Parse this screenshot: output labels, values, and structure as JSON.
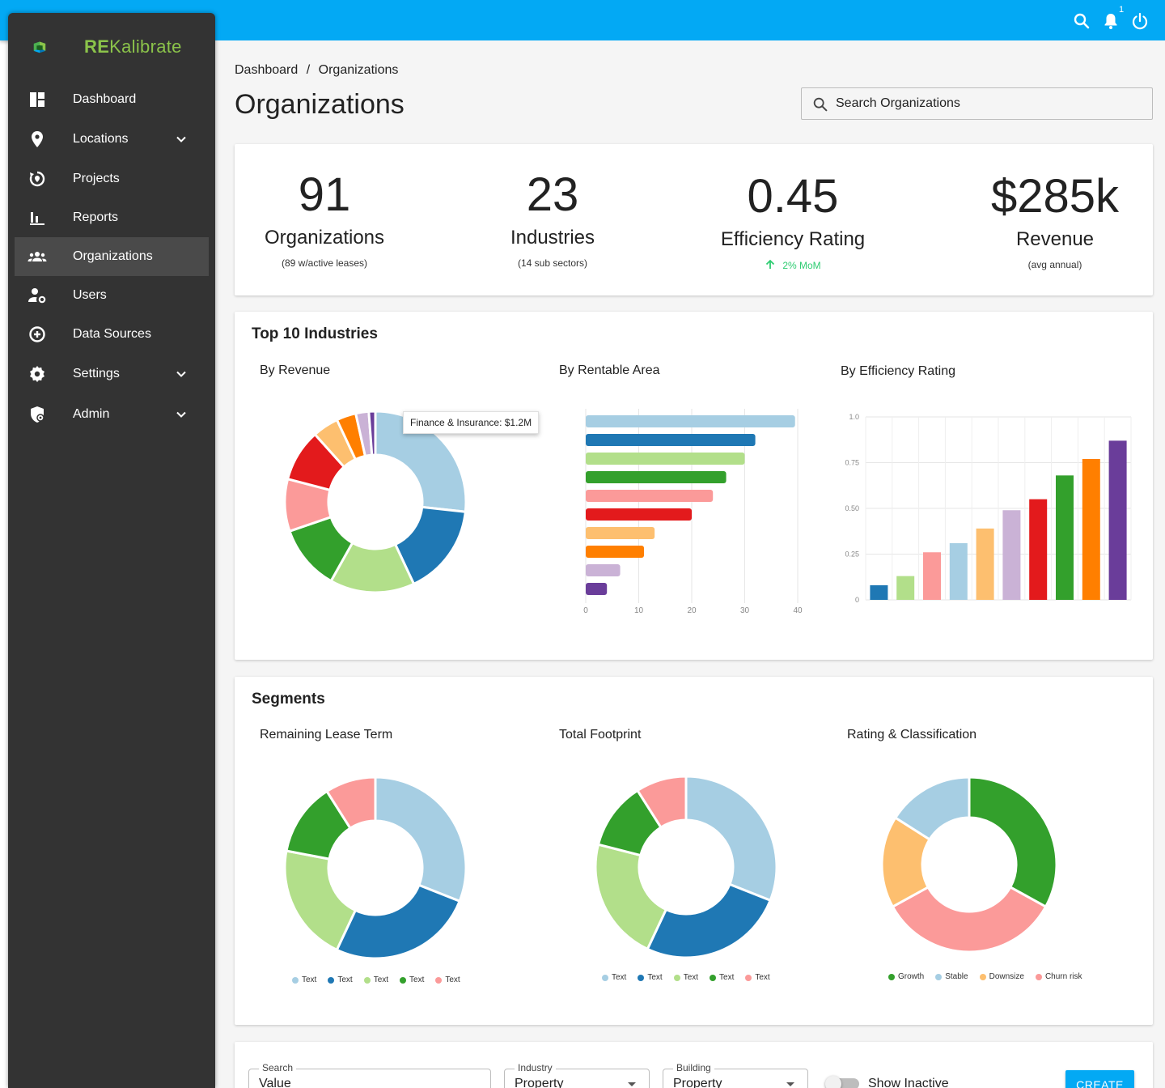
{
  "app": {
    "brand_prefix": "RE",
    "brand_suffix": "Kalibrate",
    "notification_count": "1"
  },
  "colors": {
    "primary": "#03a9f4",
    "sidebar": "#333333",
    "accent_green": "#8bc34a",
    "mom_up": "#2ecc71"
  },
  "topbar": {
    "icons": [
      "search-icon",
      "bell-icon",
      "power-icon"
    ]
  },
  "sidebar": {
    "items": [
      {
        "label": "Dashboard",
        "icon": "dashboard-icon",
        "expandable": false,
        "active": false
      },
      {
        "label": "Locations",
        "icon": "location-pin-icon",
        "expandable": true,
        "active": false
      },
      {
        "label": "Projects",
        "icon": "projects-icon",
        "expandable": false,
        "active": false
      },
      {
        "label": "Reports",
        "icon": "bar-chart-icon",
        "expandable": false,
        "active": false
      },
      {
        "label": "Organizations",
        "icon": "groups-icon",
        "expandable": false,
        "active": true
      },
      {
        "label": "Users",
        "icon": "user-settings-icon",
        "expandable": false,
        "active": false
      },
      {
        "label": "Data Sources",
        "icon": "data-source-icon",
        "expandable": false,
        "active": false
      },
      {
        "label": "Settings",
        "icon": "gear-icon",
        "expandable": true,
        "active": false
      },
      {
        "label": "Admin",
        "icon": "admin-shield-icon",
        "expandable": true,
        "active": false
      }
    ]
  },
  "header": {
    "breadcrumb": [
      "Dashboard",
      "/",
      "Organizations"
    ],
    "title": "Organizations",
    "search_placeholder": "Search Organizations"
  },
  "stats": [
    {
      "value": "91",
      "label": "Organizations",
      "sub": "(89 w/active leases)"
    },
    {
      "value": "23",
      "label": "Industries",
      "sub": "(14 sub sectors)"
    },
    {
      "value": "0.45",
      "label": "Efficiency Rating",
      "mom": "2% MoM"
    },
    {
      "value": "$285k",
      "label": "Revenue",
      "sub": "(avg annual)"
    }
  ],
  "top_industries": {
    "title": "Top 10 Industries",
    "tooltip": "Finance & Insurance: $1.2M"
  },
  "segments": {
    "title": "Segments"
  },
  "chart_data": [
    {
      "type": "pie",
      "title": "By Revenue",
      "values": [
        23,
        14,
        13,
        10,
        8,
        8,
        4,
        3,
        2,
        1
      ],
      "colors": [
        "#a6cee3",
        "#1f78b4",
        "#b2df8a",
        "#33a02c",
        "#fb9a99",
        "#e31a1c",
        "#fdbf6f",
        "#ff7f00",
        "#cab2d6",
        "#6a3d9a"
      ]
    },
    {
      "type": "bar",
      "orientation": "horizontal",
      "title": "By Rentable Area",
      "values": [
        39.5,
        32,
        30,
        26.5,
        24,
        20,
        13,
        11,
        6.5,
        4
      ],
      "colors": [
        "#a6cee3",
        "#1f78b4",
        "#b2df8a",
        "#33a02c",
        "#fb9a99",
        "#e31a1c",
        "#fdbf6f",
        "#ff7f00",
        "#cab2d6",
        "#6a3d9a"
      ],
      "xlim": [
        0,
        40
      ],
      "x_ticks": [
        "0",
        "10",
        "20",
        "30",
        "40"
      ]
    },
    {
      "type": "bar",
      "title": "By Efficiency Rating",
      "values": [
        0.08,
        0.13,
        0.26,
        0.31,
        0.39,
        0.49,
        0.55,
        0.68,
        0.77,
        0.87
      ],
      "colors": [
        "#1f78b4",
        "#b2df8a",
        "#fb9a99",
        "#a6cee3",
        "#fdbf6f",
        "#cab2d6",
        "#e31a1c",
        "#33a02c",
        "#ff7f00",
        "#6a3d9a"
      ],
      "ylim": [
        0,
        1.0
      ],
      "y_ticks": [
        "0",
        "0.25",
        "0.50",
        "0.75",
        "1.0"
      ]
    },
    {
      "type": "pie",
      "title": "Remaining Lease Term",
      "values": [
        31,
        26,
        21,
        13,
        9
      ],
      "colors": [
        "#a6cee3",
        "#1f78b4",
        "#b2df8a",
        "#33a02c",
        "#fb9a99"
      ],
      "legend": [
        "Text",
        "Text",
        "Text",
        "Text",
        "Text"
      ]
    },
    {
      "type": "pie",
      "title": "Total Footprint",
      "values": [
        31,
        26,
        22,
        12,
        9
      ],
      "colors": [
        "#a6cee3",
        "#1f78b4",
        "#b2df8a",
        "#33a02c",
        "#fb9a99"
      ],
      "legend": [
        "Text",
        "Text",
        "Text",
        "Text",
        "Text"
      ]
    },
    {
      "type": "pie",
      "title": "Rating & Classification",
      "values": [
        33,
        34,
        17,
        16
      ],
      "colors": [
        "#33a02c",
        "#fb9a99",
        "#fdbf6f",
        "#a6cee3"
      ],
      "legend": [
        "Growth",
        "Stable",
        "Downsize",
        "Churn risk"
      ],
      "legend_colors": [
        "#33a02c",
        "#a6cee3",
        "#fdbf6f",
        "#fb9a99"
      ]
    }
  ],
  "filters": {
    "search": {
      "label": "Search",
      "value": "Value"
    },
    "industry": {
      "label": "Industry",
      "value": "Property"
    },
    "building": {
      "label": "Building",
      "value": "Property"
    },
    "show_inactive_label": "Show Inactive",
    "create_label": "CREATE"
  }
}
